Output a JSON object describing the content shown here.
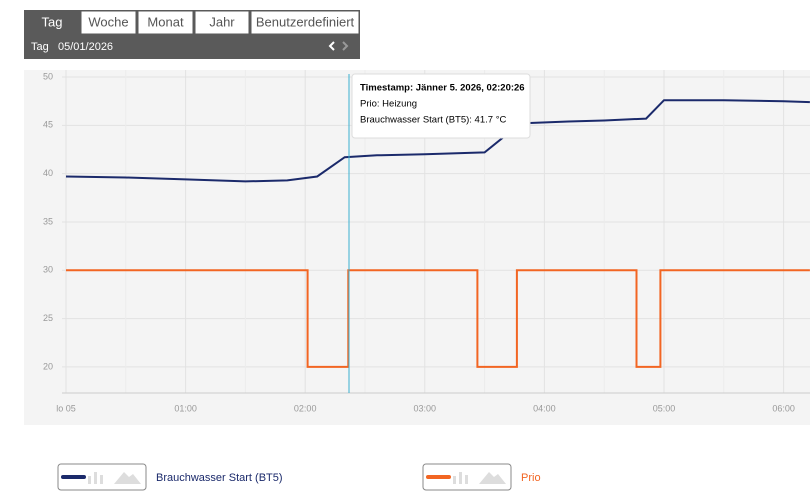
{
  "ui": {
    "tabs": [
      "Tag",
      "Woche",
      "Monat",
      "Jahr",
      "Benutzerdefiniert"
    ],
    "period_label": "Tag",
    "date": "05/01/2026",
    "tooltip": [
      "Timestamp: Jänner 5. 2026, 02:20:26",
      "Prio: Heizung",
      "Brauchwasser Start (BT5): 41.7 °C"
    ]
  },
  "chart_data": {
    "type": "line",
    "xlim": [
      0,
      6.22
    ],
    "xticks": [
      {
        "value": 0,
        "label": "lo 05"
      },
      {
        "value": 1,
        "label": "01:00"
      },
      {
        "value": 2,
        "label": "02:00"
      },
      {
        "value": 3,
        "label": "03:00"
      },
      {
        "value": 4,
        "label": "04:00"
      },
      {
        "value": 5,
        "label": "05:00"
      },
      {
        "value": 6,
        "label": "06:00"
      }
    ],
    "ylim": [
      17.3,
      50
    ],
    "yticks": [
      20,
      25,
      30,
      35,
      40,
      45,
      50
    ],
    "grid": true,
    "series": [
      {
        "name": "Brauchwasser Start (BT5)",
        "color": "#1b2a6b",
        "x": [
          0,
          0.5,
          1,
          1.5,
          1.85,
          2.1,
          2.33,
          2.6,
          3,
          3.5,
          3.8,
          4.2,
          4.5,
          4.85,
          5.0,
          5.5,
          6,
          6.22
        ],
        "values": [
          39.7,
          39.6,
          39.4,
          39.2,
          39.3,
          39.7,
          41.7,
          41.9,
          42.0,
          42.2,
          45.2,
          45.4,
          45.5,
          45.7,
          47.6,
          47.6,
          47.5,
          47.4
        ]
      },
      {
        "name": "Prio",
        "color": "#f26522",
        "x": [
          0,
          2.02,
          2.02,
          2.36,
          2.36,
          3.44,
          3.44,
          3.77,
          3.77,
          4.77,
          4.77,
          4.97,
          4.97,
          6.22
        ],
        "values": [
          30,
          30,
          20,
          20,
          30,
          30,
          20,
          20,
          30,
          30,
          20,
          20,
          30,
          30
        ]
      }
    ]
  }
}
